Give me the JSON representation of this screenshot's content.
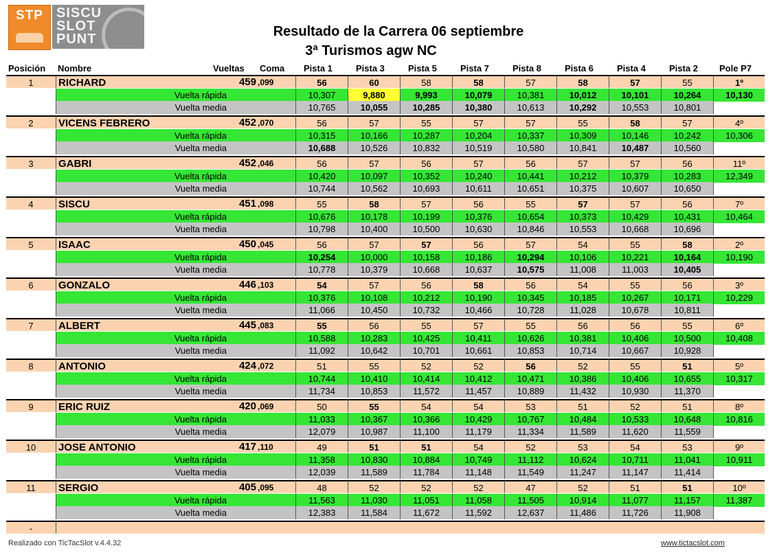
{
  "logos": {
    "stp": "STP",
    "siscu": [
      "SISCU",
      "SLOT",
      "PUNT"
    ]
  },
  "title_line1": "Resultado de la Carrera  06 septiembre",
  "title_line2": "3ª Turismos agw NC",
  "headers": {
    "posicion": "Posición",
    "nombre": "Nombre",
    "vueltas": "Vueltas",
    "coma": "Coma",
    "pistas": [
      "Pista 1",
      "Pista 3",
      "Pista 5",
      "Pista 7",
      "Pista 8",
      "Pista 6",
      "Pista 4",
      "Pista 2"
    ],
    "pole": "Pole P7"
  },
  "labels": {
    "rapida": "Vuelta rápida",
    "media": "Vuelta media"
  },
  "colors": {
    "orange": "#fbd3b0",
    "green": "#35e635",
    "grey": "#c4c4c4",
    "yellow": "#ffff33"
  },
  "drivers": [
    {
      "pos": "1",
      "name": "RICHARD",
      "laps": "459",
      "coma": ",099",
      "pole": "1º",
      "pistas": [
        "56",
        "60",
        "58",
        "58",
        "57",
        "58",
        "57",
        "55"
      ],
      "rapida": [
        "10,307",
        "9,880",
        "9,993",
        "10,079",
        "10,381",
        "10,012",
        "10,101",
        "10,264"
      ],
      "pole_rapida": "10,130",
      "media": [
        "10,765",
        "10,055",
        "10,285",
        "10,380",
        "10,613",
        "10,292",
        "10,553",
        "10,801"
      ]
    },
    {
      "pos": "2",
      "name": "VICENS FEBRERO",
      "laps": "452",
      "coma": ",070",
      "pole": "4º",
      "pistas": [
        "56",
        "57",
        "55",
        "57",
        "57",
        "55",
        "58",
        "57"
      ],
      "rapida": [
        "10,315",
        "10,166",
        "10,287",
        "10,204",
        "10,337",
        "10,309",
        "10,146",
        "10,242"
      ],
      "pole_rapida": "10,306",
      "media": [
        "10,688",
        "10,526",
        "10,832",
        "10,519",
        "10,580",
        "10,841",
        "10,487",
        "10,560"
      ]
    },
    {
      "pos": "3",
      "name": "GABRI",
      "laps": "452",
      "coma": ",046",
      "pole": "11º",
      "pistas": [
        "56",
        "57",
        "56",
        "57",
        "56",
        "57",
        "57",
        "56"
      ],
      "rapida": [
        "10,420",
        "10,097",
        "10,352",
        "10,240",
        "10,441",
        "10,212",
        "10,379",
        "10,283"
      ],
      "pole_rapida": "12,349",
      "media": [
        "10,744",
        "10,562",
        "10,693",
        "10,611",
        "10,651",
        "10,375",
        "10,607",
        "10,650"
      ]
    },
    {
      "pos": "4",
      "name": "SISCU",
      "laps": "451",
      "coma": ",098",
      "pole": "7º",
      "pistas": [
        "55",
        "58",
        "57",
        "56",
        "55",
        "57",
        "57",
        "56"
      ],
      "rapida": [
        "10,676",
        "10,178",
        "10,199",
        "10,376",
        "10,654",
        "10,373",
        "10,429",
        "10,431"
      ],
      "pole_rapida": "10,464",
      "media": [
        "10,798",
        "10,400",
        "10,500",
        "10,630",
        "10,846",
        "10,553",
        "10,668",
        "10,696"
      ]
    },
    {
      "pos": "5",
      "name": "ISAAC",
      "laps": "450",
      "coma": ",045",
      "pole": "2º",
      "pistas": [
        "56",
        "57",
        "57",
        "56",
        "57",
        "54",
        "55",
        "58"
      ],
      "rapida": [
        "10,254",
        "10,000",
        "10,158",
        "10,186",
        "10,294",
        "10,106",
        "10,221",
        "10,164"
      ],
      "pole_rapida": "10,190",
      "media": [
        "10,778",
        "10,379",
        "10,668",
        "10,637",
        "10,575",
        "11,008",
        "11,003",
        "10,405"
      ]
    },
    {
      "pos": "6",
      "name": "GONZALO",
      "laps": "446",
      "coma": ",103",
      "pole": "3º",
      "pistas": [
        "54",
        "57",
        "56",
        "58",
        "56",
        "54",
        "55",
        "56"
      ],
      "rapida": [
        "10,376",
        "10,108",
        "10,212",
        "10,190",
        "10,345",
        "10,185",
        "10,267",
        "10,171"
      ],
      "pole_rapida": "10,229",
      "media": [
        "11,066",
        "10,450",
        "10,732",
        "10,466",
        "10,728",
        "11,028",
        "10,678",
        "10,811"
      ]
    },
    {
      "pos": "7",
      "name": "ALBERT",
      "laps": "445",
      "coma": ",083",
      "pole": "6º",
      "pistas": [
        "55",
        "56",
        "55",
        "57",
        "55",
        "56",
        "56",
        "55"
      ],
      "rapida": [
        "10,588",
        "10,283",
        "10,425",
        "10,411",
        "10,626",
        "10,381",
        "10,406",
        "10,500"
      ],
      "pole_rapida": "10,408",
      "media": [
        "11,092",
        "10,642",
        "10,701",
        "10,661",
        "10,853",
        "10,714",
        "10,667",
        "10,928"
      ]
    },
    {
      "pos": "8",
      "name": "ANTONIO",
      "laps": "424",
      "coma": ",072",
      "pole": "5º",
      "pistas": [
        "51",
        "55",
        "52",
        "52",
        "56",
        "52",
        "55",
        "51"
      ],
      "rapida": [
        "10,744",
        "10,410",
        "10,414",
        "10,412",
        "10,471",
        "10,386",
        "10,406",
        "10,655"
      ],
      "pole_rapida": "10,317",
      "media": [
        "11,734",
        "10,853",
        "11,572",
        "11,457",
        "10,889",
        "11,432",
        "10,930",
        "11,370"
      ]
    },
    {
      "pos": "9",
      "name": "ERIC RUIZ",
      "laps": "420",
      "coma": ",069",
      "pole": "8º",
      "pistas": [
        "50",
        "55",
        "54",
        "54",
        "53",
        "51",
        "52",
        "51"
      ],
      "rapida": [
        "11,033",
        "10,367",
        "10,366",
        "10,429",
        "10,767",
        "10,484",
        "10,533",
        "10,648"
      ],
      "pole_rapida": "10,816",
      "media": [
        "12,079",
        "10,987",
        "11,100",
        "11,179",
        "11,334",
        "11,589",
        "11,620",
        "11,559"
      ]
    },
    {
      "pos": "10",
      "name": "JOSE ANTONIO",
      "laps": "417",
      "coma": ",110",
      "pole": "9º",
      "pistas": [
        "49",
        "51",
        "51",
        "54",
        "52",
        "53",
        "54",
        "53"
      ],
      "rapida": [
        "11,358",
        "10,830",
        "10,884",
        "10,749",
        "11,112",
        "10,624",
        "10,711",
        "11,041"
      ],
      "pole_rapida": "10,911",
      "media": [
        "12,039",
        "11,589",
        "11,784",
        "11,148",
        "11,549",
        "11,247",
        "11,147",
        "11,414"
      ]
    },
    {
      "pos": "11",
      "name": "SERGIO",
      "laps": "405",
      "coma": ",095",
      "pole": "10º",
      "pistas": [
        "48",
        "52",
        "52",
        "52",
        "47",
        "52",
        "51",
        "51"
      ],
      "rapida": [
        "11,563",
        "11,030",
        "11,051",
        "11,058",
        "11,505",
        "10,914",
        "11,077",
        "11,157"
      ],
      "pole_rapida": "11,387",
      "media": [
        "12,383",
        "11,584",
        "11,672",
        "11,592",
        "12,637",
        "11,486",
        "11,726",
        "11,908"
      ]
    }
  ],
  "last_row_pos": "-",
  "footer_left": "Realizado con TicTacSlot v.4.4.32",
  "footer_right": "www.tictacslot.com"
}
